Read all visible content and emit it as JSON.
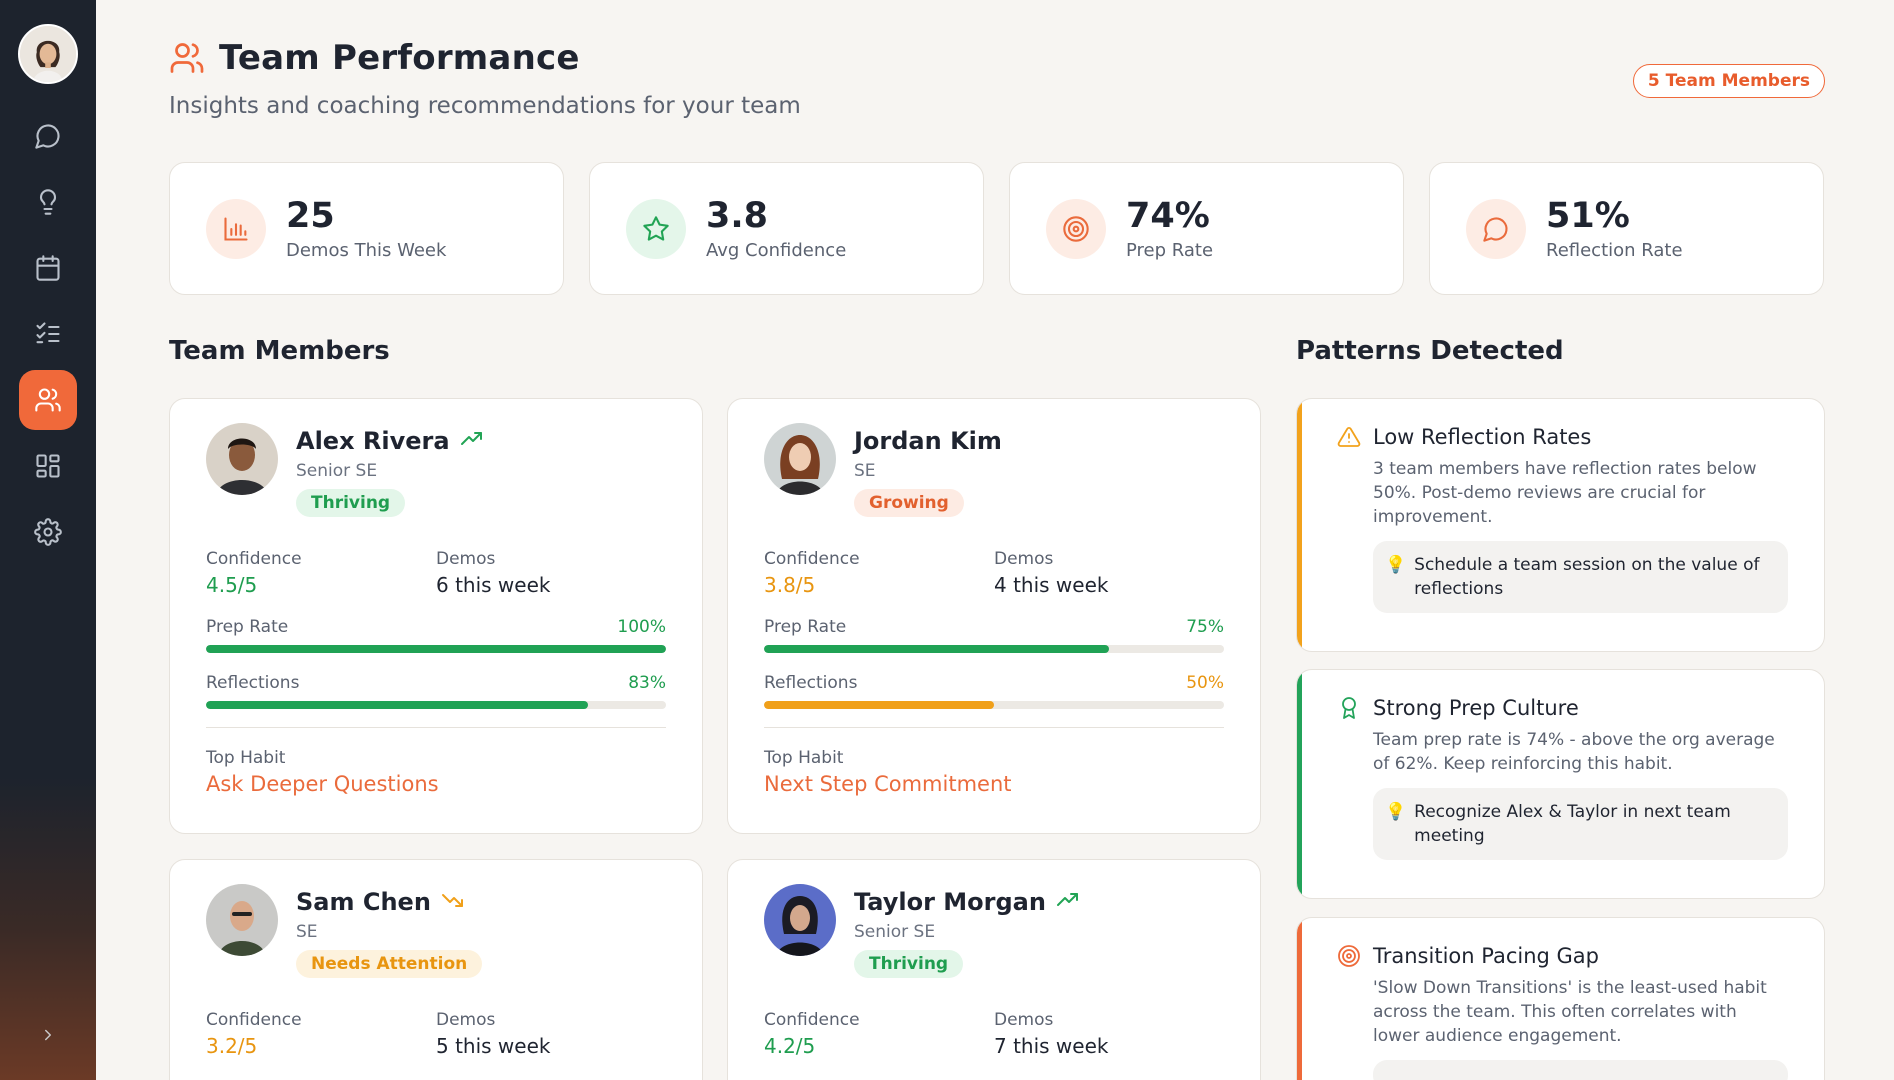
{
  "sidebar": {
    "items": [
      {
        "name": "chat",
        "icon": "chat-bubble-icon"
      },
      {
        "name": "insights",
        "icon": "lightbulb-icon"
      },
      {
        "name": "calendar",
        "icon": "calendar-icon"
      },
      {
        "name": "habits",
        "icon": "checklist-icon"
      },
      {
        "name": "team",
        "icon": "users-icon",
        "active": true
      },
      {
        "name": "dashboard",
        "icon": "grid-icon"
      },
      {
        "name": "settings",
        "icon": "gear-icon"
      }
    ],
    "collapse_icon": "chevron-right-icon"
  },
  "header": {
    "title": "Team Performance",
    "subtitle": "Insights and coaching recommendations for your team",
    "badge": "5 Team Members"
  },
  "stats": [
    {
      "value": "25",
      "label": "Demos This Week",
      "icon": "bar-chart-icon"
    },
    {
      "value": "3.8",
      "label": "Avg Confidence",
      "icon": "star-icon"
    },
    {
      "value": "74%",
      "label": "Prep Rate",
      "icon": "target-icon"
    },
    {
      "value": "51%",
      "label": "Reflection Rate",
      "icon": "chat-bubble-icon"
    }
  ],
  "sections": {
    "team_members": "Team Members",
    "patterns": "Patterns Detected"
  },
  "members": [
    {
      "name": "Alex Rivera",
      "role": "Senior SE",
      "status": "Thriving",
      "trend": "up",
      "confidence_label": "Confidence",
      "confidence": "4.5/5",
      "demos_label": "Demos",
      "demos": "6 this week",
      "prep_label": "Prep Rate",
      "prep": "100%",
      "prep_value": 100,
      "reflections_label": "Reflections",
      "reflections": "83%",
      "reflections_value": 83,
      "habit_label": "Top Habit",
      "habit": "Ask Deeper Questions"
    },
    {
      "name": "Jordan Kim",
      "role": "SE",
      "status": "Growing",
      "trend": "none",
      "confidence_label": "Confidence",
      "confidence": "3.8/5",
      "demos_label": "Demos",
      "demos": "4 this week",
      "prep_label": "Prep Rate",
      "prep": "75%",
      "prep_value": 75,
      "reflections_label": "Reflections",
      "reflections": "50%",
      "reflections_value": 50,
      "habit_label": "Top Habit",
      "habit": "Next Step Commitment"
    },
    {
      "name": "Sam Chen",
      "role": "SE",
      "status": "Needs Attention",
      "trend": "down",
      "confidence_label": "Confidence",
      "confidence": "3.2/5",
      "demos_label": "Demos",
      "demos": "5 this week"
    },
    {
      "name": "Taylor Morgan",
      "role": "Senior SE",
      "status": "Thriving",
      "trend": "up",
      "confidence_label": "Confidence",
      "confidence": "4.2/5",
      "demos_label": "Demos",
      "demos": "7 this week"
    }
  ],
  "patterns": [
    {
      "title": "Low Reflection Rates",
      "icon": "warning-icon",
      "description": "3 team members have reflection rates below 50%. Post-demo reviews are crucial for improvement.",
      "tip": "Schedule a team session on the value of reflections"
    },
    {
      "title": "Strong Prep Culture",
      "icon": "award-icon",
      "description": "Team prep rate is 74% - above the org average of 62%. Keep reinforcing this habit.",
      "tip": "Recognize Alex & Taylor in next team meeting"
    },
    {
      "title": "Transition Pacing Gap",
      "icon": "target-icon",
      "description": "'Slow Down Transitions' is the least-used habit across the team. This often correlates with lower audience engagement."
    }
  ],
  "colors": {
    "accent": "#f0693a",
    "green": "#20a255",
    "amber": "#f0a01a",
    "sidebar": "#1d232d"
  }
}
